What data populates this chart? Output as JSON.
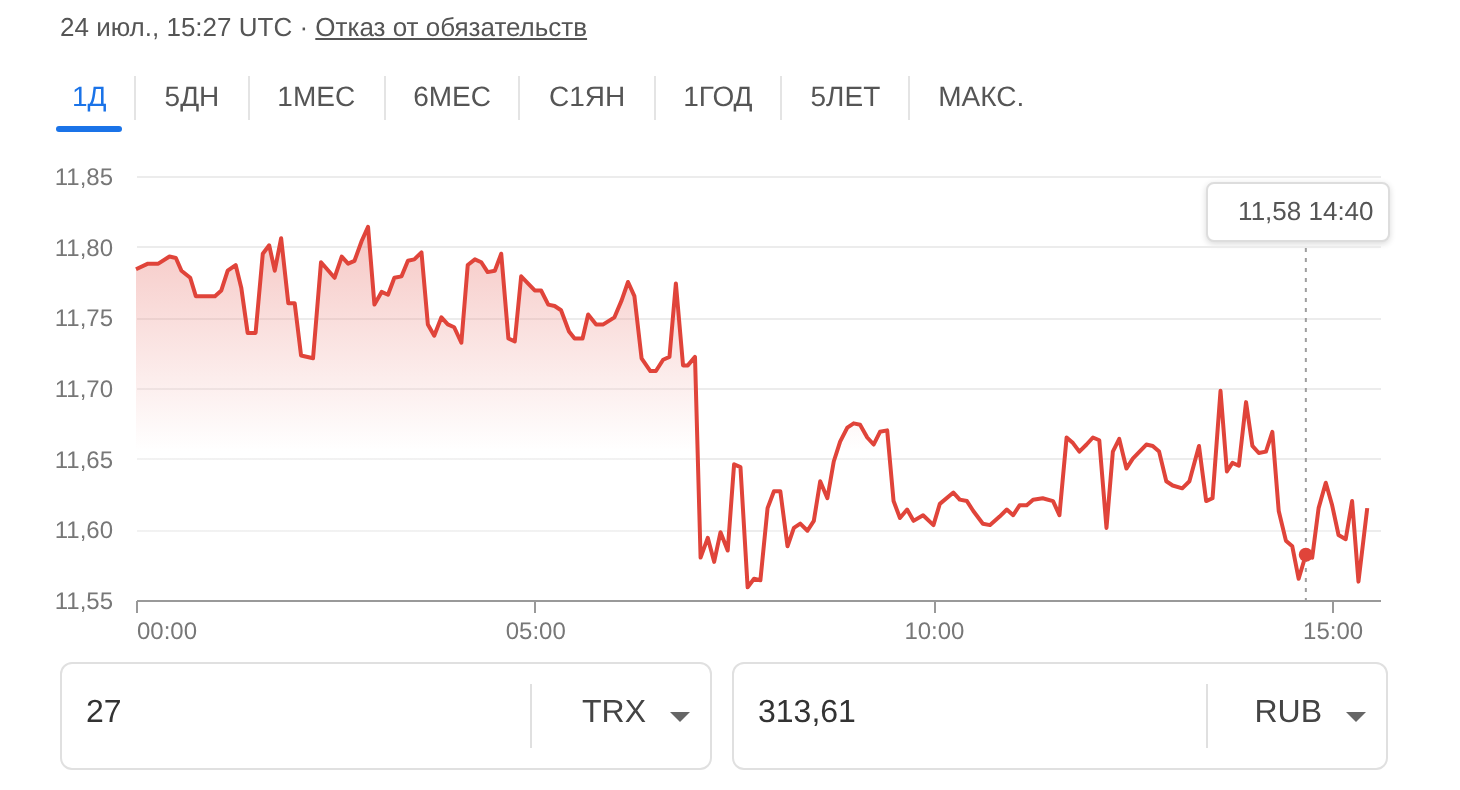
{
  "chart_data": [
    {
      "type": "other",
      "title": "24 июл., 15:27 UTC ·",
      "subtitle": "Отказ от обязательств",
      "annotations": [
        "1Д",
        "5ДН",
        "1МЕС",
        "6МЕС",
        "С1ЯН",
        "1ГОД",
        "5ЛЕТ",
        "МАКС."
      ]
    },
    {
      "type": "area",
      "color": "#e0443a",
      "grid": "y",
      "x": [
        0,
        0.15,
        0.28,
        0.42,
        0.5,
        0.57,
        0.68,
        0.75,
        0.99,
        1.07,
        1.15,
        1.25,
        1.32,
        1.4,
        1.5,
        1.59,
        1.67,
        1.74,
        1.82,
        1.91,
        1.99,
        2.07,
        2.22,
        2.32,
        2.49,
        2.58,
        2.66,
        2.74,
        2.83,
        2.91,
        2.99,
        3.08,
        3.16,
        3.24,
        3.33,
        3.41,
        3.49,
        3.58,
        3.66,
        3.74,
        3.83,
        3.91,
        3.99,
        4.08,
        4.16,
        4.25,
        4.33,
        4.41,
        4.5,
        4.58,
        4.67,
        4.75,
        4.83,
        5.0,
        5.08,
        5.17,
        5.25,
        5.33,
        5.43,
        5.5,
        5.6,
        5.67,
        5.77,
        5.86,
        6.0,
        6.09,
        6.17,
        6.25,
        6.34,
        6.45,
        6.52,
        6.61,
        6.69,
        6.77,
        6.86,
        6.92,
        7.01,
        7.08,
        7.17,
        7.25,
        7.33,
        7.42,
        7.5,
        7.58,
        7.67,
        7.75,
        7.83,
        7.92,
        8.0,
        8.08,
        8.17,
        8.25,
        8.33,
        8.42,
        8.5,
        8.58,
        8.67,
        8.75,
        8.83,
        8.92,
        9.0,
        9.08,
        9.17,
        9.25,
        9.33,
        9.42,
        9.5,
        9.58,
        9.67,
        9.75,
        9.87,
        10.0,
        10.08,
        10.25,
        10.33,
        10.42,
        10.5,
        10.62,
        10.71,
        10.83,
        10.92,
        11.0,
        11.08,
        11.17,
        11.25,
        11.37,
        11.5,
        11.58,
        11.67,
        11.75,
        11.83,
        11.92,
        12.0,
        12.08,
        12.17,
        12.25,
        12.33,
        12.42,
        12.5,
        12.67,
        12.75,
        12.83,
        12.92,
        13.0,
        13.12,
        13.21,
        13.33,
        13.42,
        13.5,
        13.6,
        13.68,
        13.75,
        13.83,
        13.92,
        14.0,
        14.08,
        14.17,
        14.25,
        14.33,
        14.42,
        14.5,
        14.58,
        14.67,
        14.75,
        14.83,
        14.92,
        15.0,
        15.08,
        15.17,
        15.25,
        15.33,
        15.44
      ],
      "values": [
        11.784,
        11.788,
        11.788,
        11.793,
        11.792,
        11.783,
        11.778,
        11.765,
        11.765,
        11.769,
        11.783,
        11.787,
        11.771,
        11.739,
        11.739,
        11.795,
        11.801,
        11.783,
        11.806,
        11.76,
        11.76,
        11.723,
        11.721,
        11.789,
        11.778,
        11.793,
        11.788,
        11.79,
        11.804,
        11.814,
        11.759,
        11.768,
        11.766,
        11.778,
        11.779,
        11.79,
        11.791,
        11.796,
        11.745,
        11.737,
        11.75,
        11.745,
        11.743,
        11.732,
        11.787,
        11.791,
        11.789,
        11.782,
        11.783,
        11.795,
        11.735,
        11.733,
        11.779,
        11.769,
        11.769,
        11.759,
        11.758,
        11.755,
        11.74,
        11.735,
        11.735,
        11.752,
        11.745,
        11.745,
        11.75,
        11.762,
        11.775,
        11.765,
        11.721,
        11.712,
        11.712,
        11.72,
        11.722,
        11.774,
        11.716,
        11.716,
        11.722,
        11.58,
        11.594,
        11.577,
        11.598,
        11.585,
        11.646,
        11.644,
        11.559,
        11.565,
        11.564,
        11.615,
        11.627,
        11.627,
        11.588,
        11.601,
        11.604,
        11.599,
        11.606,
        11.634,
        11.622,
        11.648,
        11.662,
        11.672,
        11.675,
        11.674,
        11.665,
        11.66,
        11.669,
        11.67,
        11.62,
        11.608,
        11.614,
        11.606,
        11.61,
        11.603,
        11.618,
        11.626,
        11.621,
        11.62,
        11.613,
        11.604,
        11.603,
        11.609,
        11.614,
        11.61,
        11.617,
        11.617,
        11.621,
        11.622,
        11.62,
        11.61,
        11.665,
        11.661,
        11.655,
        11.66,
        11.665,
        11.663,
        11.601,
        11.655,
        11.664,
        11.643,
        11.65,
        11.66,
        11.659,
        11.655,
        11.634,
        11.631,
        11.629,
        11.634,
        11.659,
        11.62,
        11.622,
        11.698,
        11.641,
        11.647,
        11.645,
        11.69,
        11.659,
        11.654,
        11.655,
        11.669,
        11.613,
        11.592,
        11.588,
        11.565,
        11.582,
        11.58,
        11.615,
        11.633,
        11.617,
        11.596,
        11.593,
        11.62,
        11.563,
        11.615
      ],
      "xlim": [
        0,
        15.6
      ],
      "ylim": [
        11.55,
        11.85
      ],
      "xticks": [
        {
          "value": 0,
          "label": "00:00"
        },
        {
          "value": 5,
          "label": "05:00"
        },
        {
          "value": 10,
          "label": "10:00"
        },
        {
          "value": 15,
          "label": "15:00"
        }
      ],
      "yticks": [
        {
          "value": 11.55,
          "label": "11,55"
        },
        {
          "value": 11.6,
          "label": "11,60"
        },
        {
          "value": 11.65,
          "label": "11,65"
        },
        {
          "value": 11.7,
          "label": "11,70"
        },
        {
          "value": 11.75,
          "label": "11,75"
        },
        {
          "value": 11.8,
          "label": "11,80"
        },
        {
          "value": 11.85,
          "label": "11,85"
        }
      ],
      "ref_lines": [
        {
          "axis": "x",
          "value": 14.67,
          "color": "#9e9e9e",
          "line_style": "dotted"
        }
      ],
      "annotations": [
        "11,58 14:40"
      ]
    },
    {
      "type": "other",
      "annotations": [
        "27",
        "TRX",
        "313,61",
        "RUB"
      ]
    }
  ]
}
